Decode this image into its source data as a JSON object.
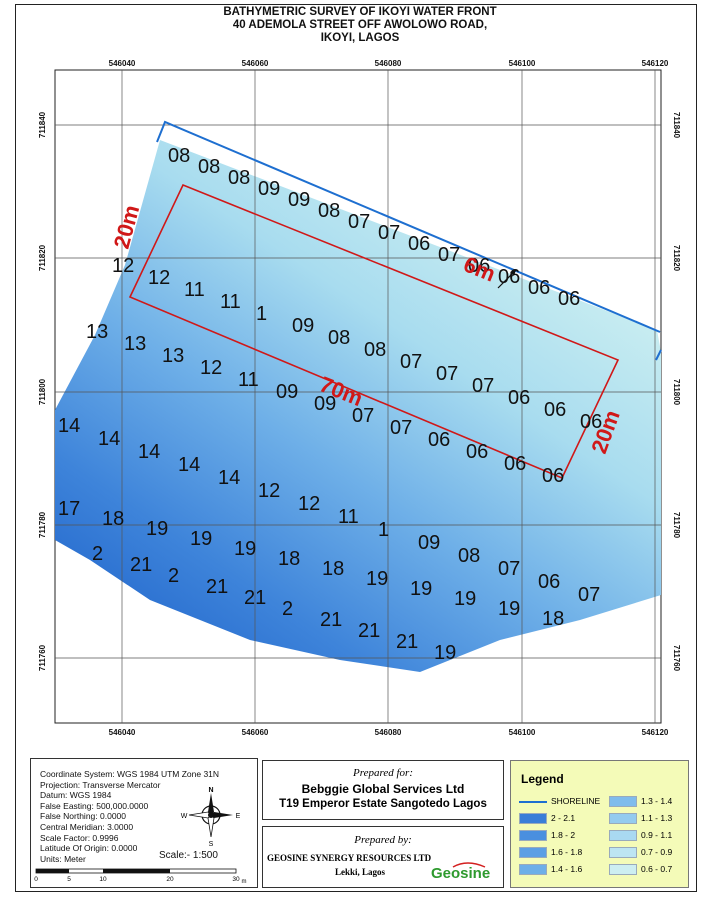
{
  "title": {
    "line1": "BATHYMETRIC SURVEY OF IKOYI WATER FRONT",
    "line2": "40 ADEMOLA STREET OFF AWOLOWO ROAD,",
    "line3": "IKOYI, LAGOS"
  },
  "grid": {
    "eastings": [
      "546040",
      "546060",
      "546080",
      "546100",
      "546120"
    ],
    "northings": [
      "711840",
      "711820",
      "711800",
      "711780",
      "711760"
    ]
  },
  "annotations": {
    "width_left": "20m",
    "width_right": "20m",
    "length": "70m",
    "offset": "6m"
  },
  "depths": [
    {
      "r": 0,
      "v": [
        "08",
        "08",
        "08",
        "09",
        "09",
        "08",
        "07",
        "07",
        "06",
        "07",
        "06",
        "06",
        "06",
        "06"
      ]
    },
    {
      "r": 1,
      "v": [
        "12",
        "12",
        "11",
        "11",
        "1",
        "09",
        "08",
        "08",
        "07",
        "07",
        "07",
        "06",
        "06",
        "06"
      ]
    },
    {
      "r": 2,
      "v": [
        "13",
        "13",
        "13",
        "12",
        "11",
        "09",
        "09",
        "07",
        "07",
        "06",
        "06",
        "06",
        "06"
      ]
    },
    {
      "r": 3,
      "v": [
        "14",
        "14",
        "14",
        "14",
        "14",
        "12",
        "12",
        "11",
        "1",
        "09",
        "08",
        "07",
        "06",
        "07"
      ]
    },
    {
      "r": 4,
      "v": [
        "17",
        "18",
        "19",
        "19",
        "19",
        "18",
        "18",
        "19",
        "19",
        "19",
        "19",
        "18"
      ]
    },
    {
      "r": 5,
      "v": [
        "2",
        "21",
        "2",
        "21",
        "21",
        "2",
        "21",
        "21",
        "21",
        "19"
      ]
    }
  ],
  "info": {
    "coord_system": "Coordinate System: WGS 1984 UTM Zone 31N",
    "projection": "Projection: Transverse Mercator",
    "datum": "Datum: WGS 1984",
    "false_easting": "False Easting: 500,000.0000",
    "false_northing": "False Northing: 0.0000",
    "central_meridian": "Central Meridian: 3.0000",
    "scale_factor": "Scale Factor: 0.9996",
    "latitude_origin": "Latitude Of Origin: 0.0000",
    "units": "Units: Meter",
    "scale": "Scale:- 1:500",
    "scalebar": [
      "0",
      "5",
      "10",
      "20",
      "30"
    ],
    "scalebar_unit": "m"
  },
  "compass": {
    "n": "N",
    "s": "S",
    "e": "E",
    "w": "W"
  },
  "prepared_for": {
    "label": "Prepared for:",
    "line1": "Bebggie Global Services Ltd",
    "line2": "T19 Emperor Estate Sangotedo Lagos"
  },
  "prepared_by": {
    "label": "Prepared by:",
    "company": "GEOSINE SYNERGY RESOURCES LTD",
    "location": "Lekki, Lagos",
    "logo": "Geosine"
  },
  "legend": {
    "title": "Legend",
    "shoreline": "SHORELINE",
    "items_left": [
      {
        "label": "2 - 2.1",
        "color": "#3a7ed8"
      },
      {
        "label": "1.8 - 2",
        "color": "#4a8fdf"
      },
      {
        "label": "1.6 - 1.8",
        "color": "#5c9fe4"
      },
      {
        "label": "1.4 - 1.6",
        "color": "#6dafe8"
      }
    ],
    "items_right": [
      {
        "label": "1.3 - 1.4",
        "color": "#7fbcec"
      },
      {
        "label": "1.1 - 1.3",
        "color": "#94cbef"
      },
      {
        "label": "0.9 - 1.1",
        "color": "#a9d9f1"
      },
      {
        "label": "0.7 - 0.9",
        "color": "#bde5f2"
      },
      {
        "label": "0.6 - 0.7",
        "color": "#cdeef1"
      }
    ],
    "shoreline_color": "#1e6fd0"
  }
}
